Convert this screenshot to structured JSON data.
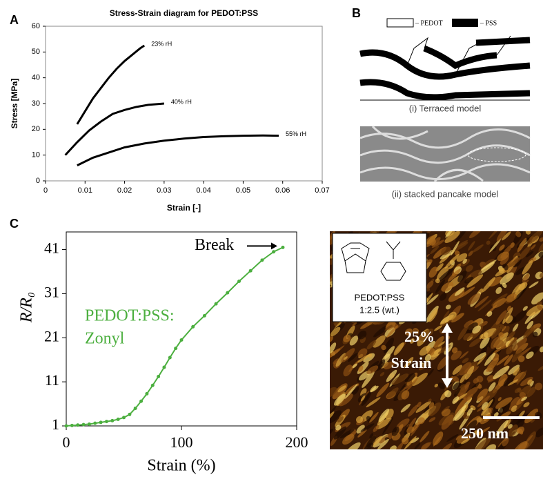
{
  "panel_labels": [
    "A",
    "B",
    "C"
  ],
  "chart_data": [
    {
      "type": "line",
      "title": "Stress-Strain diagram for PEDOT:PSS",
      "x_label": "Strain [-]",
      "y_label": "Stress [MPa]",
      "xlim": [
        0,
        0.07
      ],
      "xticks": [
        0,
        0.01,
        0.02,
        0.03,
        0.04,
        0.05,
        0.06,
        0.07
      ],
      "ylim": [
        0,
        60
      ],
      "yticks": [
        0,
        10,
        20,
        30,
        40,
        50,
        60
      ],
      "series": [
        {
          "name": "23% rH",
          "color": "#000000",
          "x": [
            0.008,
            0.01,
            0.012,
            0.014,
            0.016,
            0.018,
            0.02,
            0.022,
            0.024,
            0.025
          ],
          "values": [
            22,
            27,
            32,
            36,
            40,
            43.5,
            46.5,
            49,
            51.5,
            52.5
          ]
        },
        {
          "name": "40% rH",
          "color": "#000000",
          "x": [
            0.005,
            0.008,
            0.011,
            0.014,
            0.017,
            0.02,
            0.023,
            0.026,
            0.03
          ],
          "values": [
            10,
            15,
            19.5,
            23,
            26,
            27.5,
            28.7,
            29.5,
            30
          ]
        },
        {
          "name": "55% rH",
          "color": "#000000",
          "x": [
            0.008,
            0.012,
            0.016,
            0.02,
            0.025,
            0.03,
            0.035,
            0.04,
            0.045,
            0.05,
            0.055,
            0.059
          ],
          "values": [
            6,
            9,
            11,
            13,
            14.5,
            15.6,
            16.4,
            17,
            17.3,
            17.5,
            17.6,
            17.5
          ]
        }
      ]
    },
    {
      "type": "line",
      "x_label": "Strain (%)",
      "y_label": "R/R₀",
      "color": "#4caf3f",
      "xlim": [
        0,
        200
      ],
      "xticks": [
        0,
        100,
        200
      ],
      "ylim": [
        1,
        45
      ],
      "yticks": [
        1,
        11,
        21,
        31,
        41
      ],
      "x": [
        0,
        5,
        10,
        15,
        20,
        25,
        30,
        35,
        40,
        45,
        50,
        55,
        60,
        65,
        70,
        75,
        80,
        85,
        90,
        95,
        100,
        110,
        120,
        130,
        140,
        150,
        160,
        170,
        180,
        188
      ],
      "values": [
        1,
        1.1,
        1.2,
        1.3,
        1.4,
        1.6,
        1.8,
        2,
        2.2,
        2.5,
        2.9,
        3.6,
        5,
        6.6,
        8.3,
        10.2,
        12.2,
        14.3,
        16.5,
        18.6,
        20.5,
        23.5,
        26,
        28.7,
        31.2,
        33.8,
        36.2,
        38.6,
        40.5,
        41.5
      ],
      "annotations": [
        "Break",
        "PEDOT:PSS:",
        "Zonyl"
      ]
    }
  ],
  "diagram": {
    "legend": [
      "– PEDOT",
      "– PSS"
    ],
    "captions": [
      "(i) Terraced model",
      "(ii) stacked pancake model"
    ]
  },
  "afm_image": {
    "labels": [
      "PEDOT:PSS",
      "1:2.5 (wt.)",
      "25%",
      "Strain",
      "250 nm"
    ]
  }
}
